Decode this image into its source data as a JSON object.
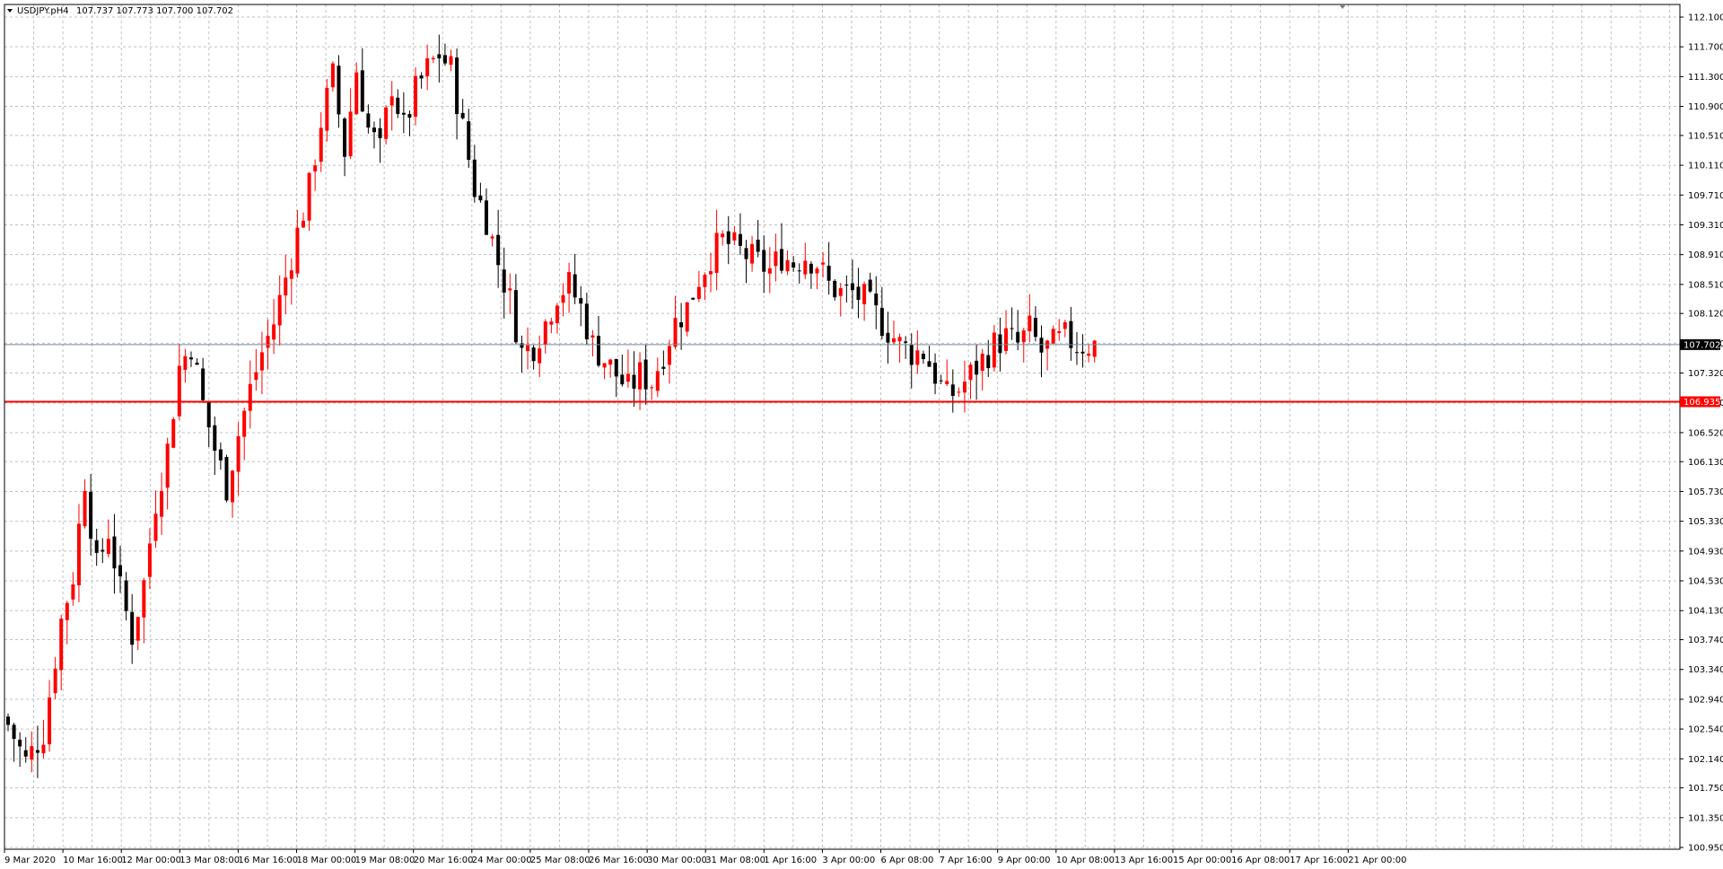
{
  "header": {
    "symbol_tf": "USDJPY.pH4",
    "ohlc": "107.737 107.773 107.700 107.702"
  },
  "colors": {
    "bull": "#ff0000",
    "bear": "#000000",
    "grid": "#c0c0c0",
    "current_price_line": "#778899",
    "level_line": "#ff0000",
    "current_price_tag": "#000000",
    "level_tag": "#ff0000"
  },
  "price_tags": {
    "current_price": "107.702",
    "level": "106.935"
  },
  "chart_data": {
    "type": "candlestick",
    "symbol": "USDJPY.p",
    "timeframe": "H4",
    "grid": true,
    "ylim": [
      100.95,
      112.3
    ],
    "y_ticks": [
      "112.100",
      "111.700",
      "111.300",
      "110.900",
      "110.510",
      "110.110",
      "109.710",
      "109.310",
      "108.910",
      "108.510",
      "108.120",
      "107.720",
      "107.320",
      "106.920",
      "106.520",
      "106.130",
      "105.730",
      "105.330",
      "104.930",
      "104.530",
      "104.130",
      "103.740",
      "103.340",
      "102.940",
      "102.540",
      "102.140",
      "101.750",
      "101.350",
      "100.950"
    ],
    "x_labels": [
      "9 Mar 2020",
      "10 Mar 16:00",
      "12 Mar 00:00",
      "13 Mar 08:00",
      "16 Mar 16:00",
      "18 Mar 00:00",
      "19 Mar 08:00",
      "20 Mar 16:00",
      "24 Mar 00:00",
      "25 Mar 08:00",
      "26 Mar 16:00",
      "30 Mar 00:00",
      "31 Mar 08:00",
      "1 Apr 16:00",
      "3 Apr 00:00",
      "6 Apr 08:00",
      "7 Apr 16:00",
      "9 Apr 00:00",
      "10 Apr 08:00",
      "13 Apr 16:00",
      "15 Apr 00:00",
      "16 Apr 08:00",
      "17 Apr 16:00",
      "21 Apr 00:00"
    ],
    "current_price": 107.702,
    "horizontal_level": 106.935,
    "close_path": [
      [
        0,
        102.6
      ],
      [
        3,
        102.1
      ],
      [
        6,
        102.5
      ],
      [
        9,
        104.0
      ],
      [
        11,
        104.6
      ],
      [
        13,
        105.9
      ],
      [
        15,
        104.7
      ],
      [
        17,
        105.2
      ],
      [
        19,
        104.4
      ],
      [
        21,
        103.8
      ],
      [
        23,
        104.5
      ],
      [
        25,
        105.6
      ],
      [
        27,
        106.3
      ],
      [
        29,
        107.4
      ],
      [
        31,
        107.7
      ],
      [
        33,
        106.9
      ],
      [
        35,
        106.3
      ],
      [
        37,
        105.8
      ],
      [
        39,
        106.5
      ],
      [
        41,
        107.1
      ],
      [
        43,
        107.6
      ],
      [
        45,
        108.0
      ],
      [
        47,
        108.6
      ],
      [
        49,
        109.2
      ],
      [
        51,
        109.8
      ],
      [
        53,
        110.7
      ],
      [
        55,
        111.3
      ],
      [
        57,
        110.3
      ],
      [
        59,
        111.4
      ],
      [
        61,
        110.6
      ],
      [
        63,
        110.3
      ],
      [
        65,
        111.2
      ],
      [
        67,
        110.6
      ],
      [
        69,
        111.1
      ],
      [
        71,
        111.4
      ],
      [
        73,
        111.6
      ],
      [
        75,
        111.4
      ],
      [
        77,
        110.6
      ],
      [
        79,
        109.8
      ],
      [
        81,
        109.4
      ],
      [
        83,
        108.8
      ],
      [
        85,
        108.3
      ],
      [
        87,
        107.6
      ],
      [
        89,
        107.7
      ],
      [
        91,
        108.0
      ],
      [
        93,
        108.4
      ],
      [
        95,
        108.5
      ],
      [
        97,
        108.2
      ],
      [
        99,
        107.7
      ],
      [
        101,
        107.5
      ],
      [
        103,
        107.3
      ],
      [
        105,
        107.1
      ],
      [
        107,
        107.3
      ],
      [
        109,
        107.2
      ],
      [
        111,
        107.6
      ],
      [
        113,
        108.0
      ],
      [
        115,
        108.2
      ],
      [
        117,
        108.6
      ],
      [
        119,
        108.9
      ],
      [
        121,
        109.1
      ],
      [
        123,
        109.0
      ],
      [
        125,
        108.9
      ],
      [
        127,
        108.8
      ],
      [
        129,
        108.7
      ],
      [
        131,
        108.9
      ],
      [
        133,
        108.8
      ],
      [
        135,
        108.9
      ],
      [
        137,
        108.8
      ],
      [
        139,
        108.5
      ],
      [
        141,
        108.4
      ],
      [
        143,
        108.4
      ],
      [
        145,
        108.3
      ],
      [
        147,
        108.1
      ],
      [
        149,
        107.9
      ],
      [
        151,
        107.7
      ],
      [
        153,
        107.6
      ],
      [
        155,
        107.6
      ],
      [
        157,
        107.3
      ],
      [
        159,
        107.0
      ],
      [
        161,
        107.1
      ],
      [
        163,
        107.3
      ],
      [
        165,
        107.5
      ],
      [
        167,
        107.7
      ],
      [
        169,
        107.8
      ],
      [
        171,
        107.7
      ],
      [
        173,
        107.9
      ],
      [
        175,
        107.6
      ],
      [
        177,
        107.7
      ],
      [
        179,
        107.8
      ],
      [
        181,
        107.7
      ],
      [
        183,
        107.7
      ],
      [
        184,
        107.702
      ]
    ]
  }
}
